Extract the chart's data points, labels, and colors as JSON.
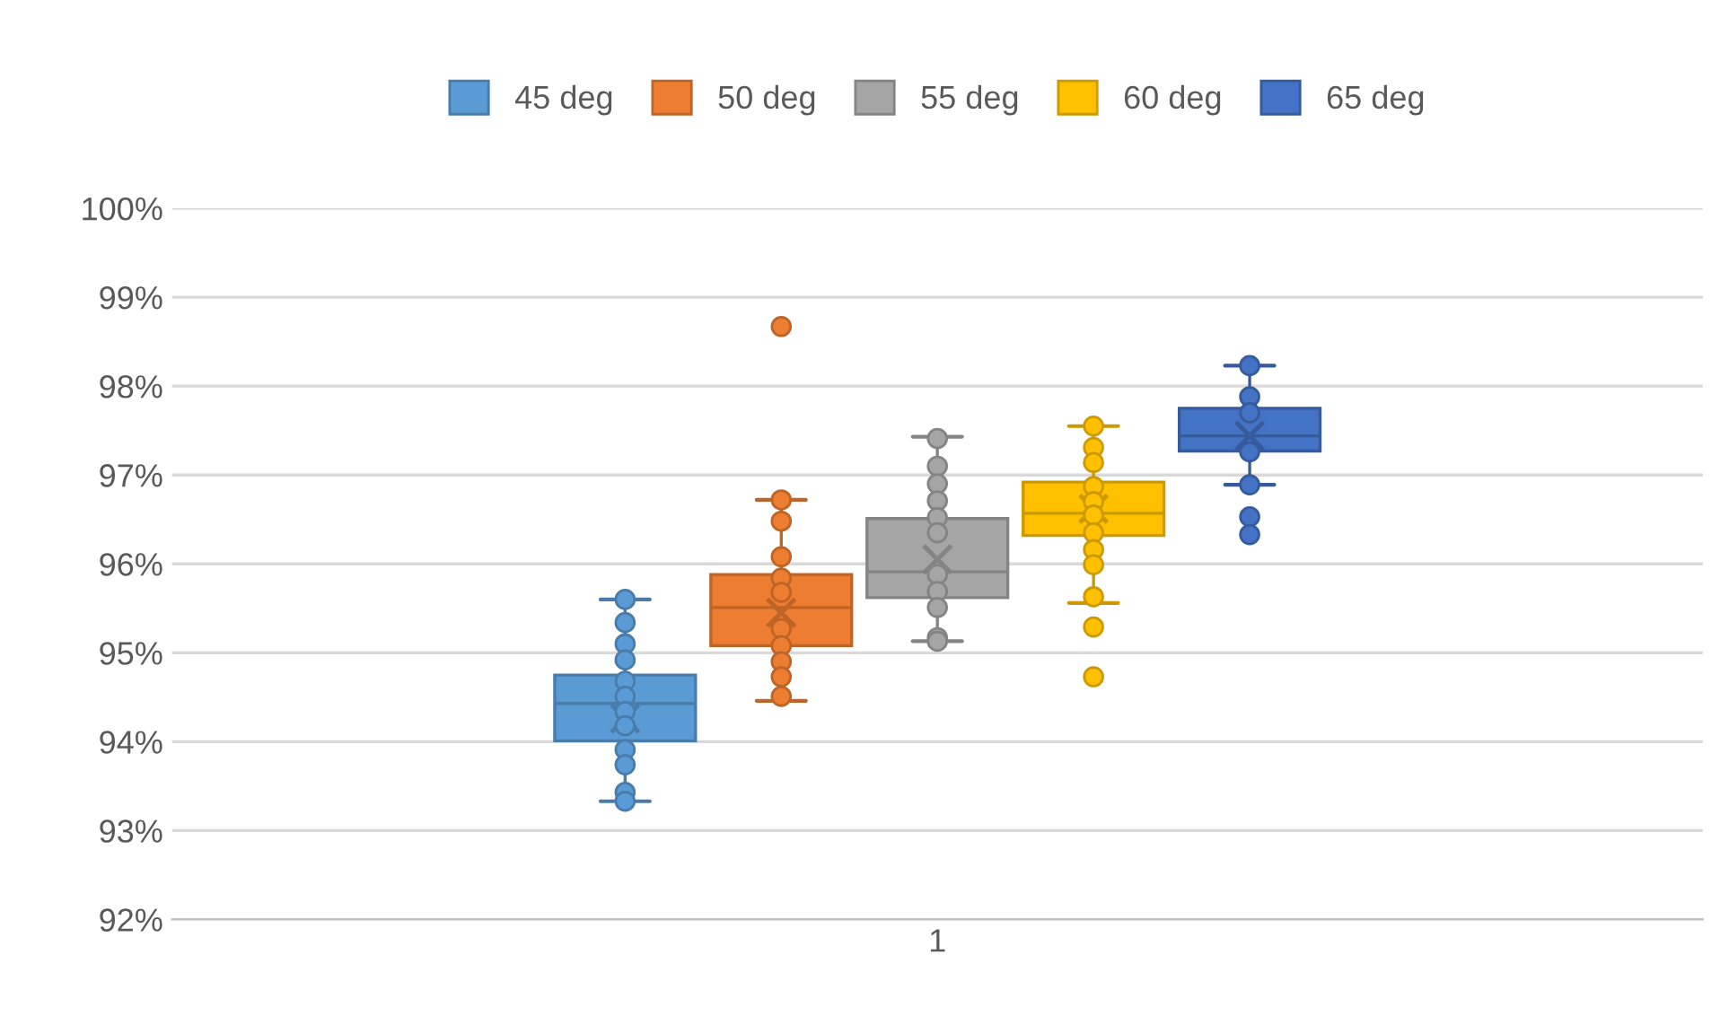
{
  "chart_data": {
    "type": "box",
    "categories": [
      "1"
    ],
    "ylim": [
      92,
      100
    ],
    "yticks": [
      {
        "value": 92,
        "label": "92%"
      },
      {
        "value": 93,
        "label": "93%"
      },
      {
        "value": 94,
        "label": "94%"
      },
      {
        "value": 95,
        "label": "95%"
      },
      {
        "value": 96,
        "label": "96%"
      },
      {
        "value": 97,
        "label": "97%"
      },
      {
        "value": 98,
        "label": "98%"
      },
      {
        "value": 99,
        "label": "99%"
      },
      {
        "value": 100,
        "label": "100%"
      }
    ],
    "grid": "y",
    "legend": "top",
    "series": [
      {
        "name": "45 deg",
        "color": "#5b9bd5",
        "boxes": [
          {
            "low": 93.33,
            "q1": 94.01,
            "median": 94.43,
            "q3": 94.75,
            "high": 95.6,
            "mean": 94.26,
            "outliers": [
              95.6,
              95.34,
              95.1,
              94.92,
              94.68,
              94.51,
              94.34,
              94.18,
              93.91,
              93.74,
              93.43,
              93.33
            ]
          }
        ]
      },
      {
        "name": "50 deg",
        "color": "#ed7d31",
        "boxes": [
          {
            "low": 94.46,
            "q1": 95.08,
            "median": 95.51,
            "q3": 95.88,
            "high": 96.72,
            "mean": 95.45,
            "outliers": [
              98.67,
              96.72,
              96.48,
              96.08,
              95.84,
              95.68,
              95.27,
              95.08,
              94.9,
              94.73,
              94.51
            ]
          }
        ]
      },
      {
        "name": "55 deg",
        "color": "#a5a5a5",
        "boxes": [
          {
            "low": 95.13,
            "q1": 95.62,
            "median": 95.91,
            "q3": 96.51,
            "high": 97.43,
            "mean": 96.05,
            "outliers": [
              97.41,
              97.1,
              96.9,
              96.71,
              96.52,
              96.35,
              95.88,
              95.69,
              95.51,
              95.17,
              95.13
            ]
          }
        ]
      },
      {
        "name": "60 deg",
        "color": "#ffc000",
        "boxes": [
          {
            "low": 95.56,
            "q1": 96.32,
            "median": 96.57,
            "q3": 96.92,
            "high": 97.55,
            "mean": 96.62,
            "outliers": [
              97.55,
              97.31,
              97.14,
              96.87,
              96.7,
              96.55,
              96.35,
              96.16,
              95.99,
              95.63,
              95.29,
              94.73
            ]
          }
        ]
      },
      {
        "name": "65 deg",
        "color": "#4472c4",
        "boxes": [
          {
            "low": 96.89,
            "q1": 97.27,
            "median": 97.44,
            "q3": 97.75,
            "high": 98.23,
            "mean": 97.44,
            "outliers": [
              98.23,
              97.88,
              97.7,
              97.26,
              96.89,
              96.53,
              96.33
            ]
          }
        ]
      }
    ]
  }
}
